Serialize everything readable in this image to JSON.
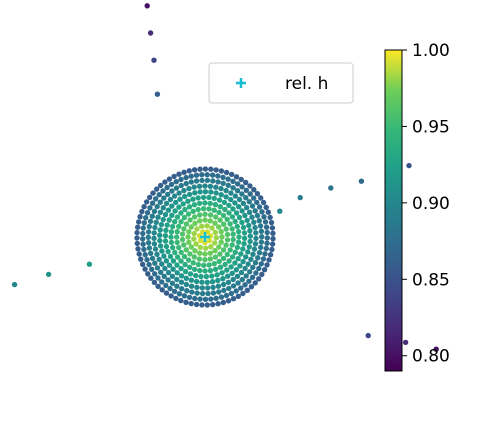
{
  "chart_data": {
    "type": "scatter",
    "legend": {
      "entries": [
        {
          "label": "rel. h",
          "marker": "plus",
          "color": "#17becf"
        }
      ],
      "placement": "top-right"
    },
    "colormap": "viridis",
    "colorbar": {
      "range": [
        0.79,
        1.0
      ],
      "ticks": [
        0.8,
        0.85,
        0.9,
        0.95,
        1.0
      ],
      "tick_labels": [
        "0.80",
        "0.85",
        "0.90",
        "0.95",
        "1.00"
      ]
    },
    "axes_visible": false,
    "center_marker": {
      "label": "rel. h",
      "x": 0,
      "y": 0
    },
    "disk": {
      "radius": 1.0,
      "center_value": 1.0,
      "edge_value": 0.86
    },
    "arms": [
      {
        "name": "",
        "x": [
          -1.7,
          -2.3,
          -2.8,
          -3.25,
          -3.7,
          -4.2
        ],
        "y": [
          -0.4,
          -0.55,
          -0.7,
          -0.8,
          -0.9,
          -1.05
        ],
        "values": [
          0.92,
          0.91,
          0.9,
          0.89,
          0.88,
          0.87
        ]
      },
      {
        "name": "",
        "x": [
          1.1,
          1.4,
          1.85,
          2.3,
          2.7,
          3.0
        ],
        "y": [
          0.38,
          0.58,
          0.72,
          0.82,
          0.95,
          1.05
        ],
        "values": [
          0.9,
          0.89,
          0.88,
          0.87,
          0.86,
          0.85
        ]
      },
      {
        "name": "",
        "x": [
          -0.7,
          -0.75,
          -0.8,
          -0.85
        ],
        "y": [
          2.1,
          2.6,
          3.0,
          3.4
        ],
        "values": [
          0.86,
          0.84,
          0.82,
          0.8
        ]
      },
      {
        "name": "",
        "x": [
          2.4,
          2.95,
          3.4
        ],
        "y": [
          -1.45,
          -1.55,
          -1.65
        ],
        "values": [
          0.84,
          0.82,
          0.8
        ]
      }
    ]
  }
}
